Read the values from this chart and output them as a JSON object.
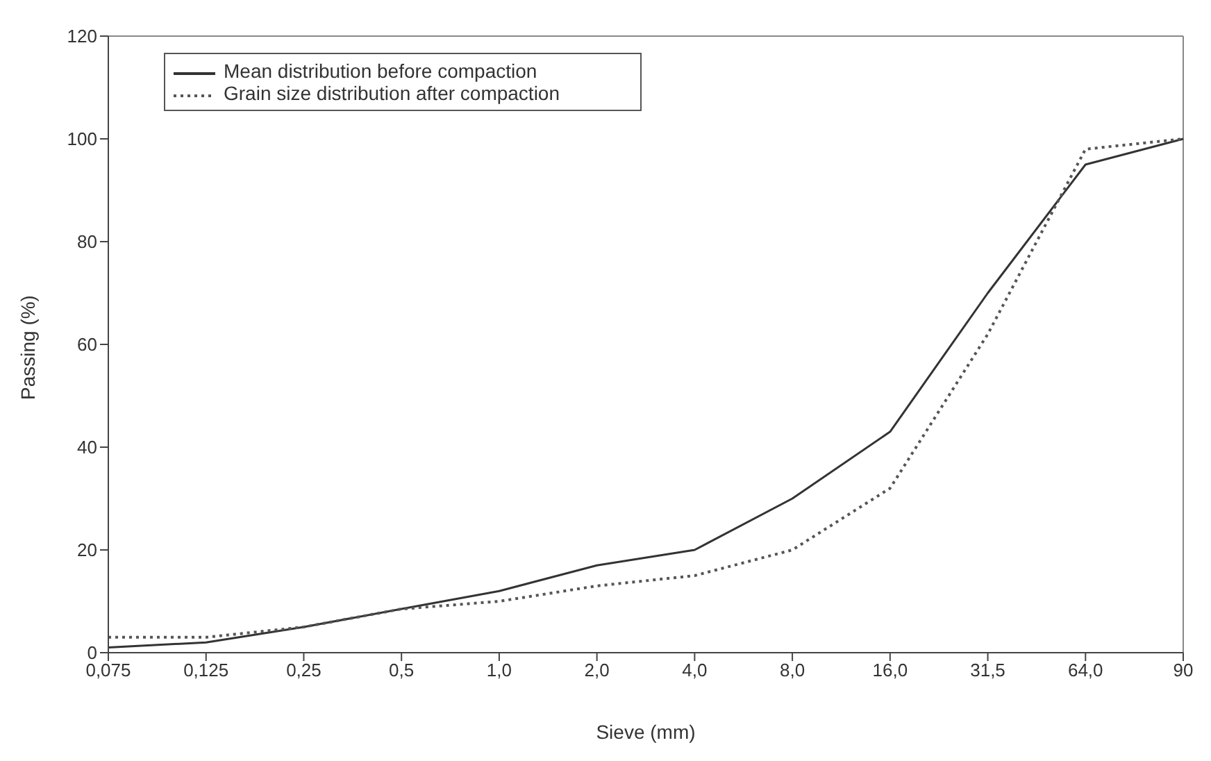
{
  "chart_data": {
    "type": "line",
    "xlabel": "Sieve (mm)",
    "ylabel": "Passing (%)",
    "categories": [
      "0,075",
      "0,125",
      "0,25",
      "0,5",
      "1,0",
      "2,0",
      "4,0",
      "8,0",
      "16,0",
      "31,5",
      "64,0",
      "90"
    ],
    "series": [
      {
        "name": "Mean distribution before compaction",
        "color": "#333333",
        "line_style": "solid",
        "values": [
          1,
          2,
          5,
          8.5,
          12,
          17,
          20,
          30,
          43,
          70,
          95,
          100
        ]
      },
      {
        "name": "Grain size distribution after compaction",
        "color": "#555555",
        "line_style": "dotted",
        "values": [
          3,
          3,
          5,
          8.5,
          10,
          13,
          15,
          20,
          32,
          62,
          98,
          100
        ]
      }
    ],
    "ylim": [
      0,
      120
    ],
    "yticks": [
      0,
      20,
      40,
      60,
      80,
      100,
      120
    ],
    "grid": false,
    "legend": "top left",
    "marker": "none"
  }
}
